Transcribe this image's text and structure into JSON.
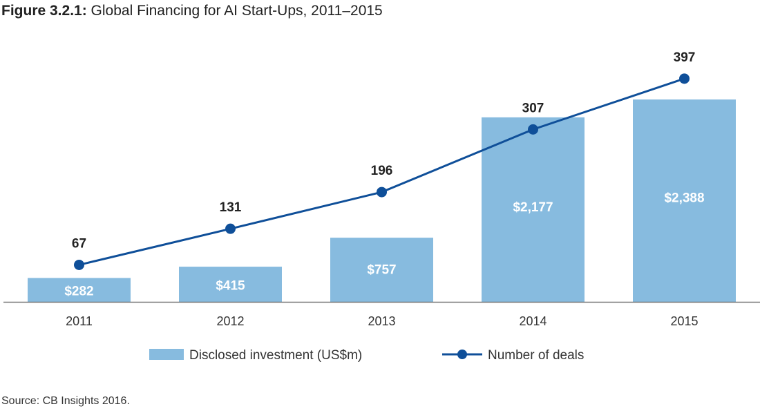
{
  "title": {
    "figure_ref": "Figure 3.2.1:",
    "text": "Global Financing for AI Start-Ups, 2011–2015"
  },
  "source": "Source: CB Insights 2016.",
  "colors": {
    "bar": "#87bbdf",
    "line": "#0f4f99",
    "axis": "#777777"
  },
  "legend": {
    "bars_label": "Disclosed investment (US$m)",
    "line_label": "Number of deals",
    "placement": "bottom-center"
  },
  "chart_data": {
    "type": "bar",
    "categories": [
      "2011",
      "2012",
      "2013",
      "2014",
      "2015"
    ],
    "series": [
      {
        "name": "Disclosed investment (US$m)",
        "type": "bar",
        "values": [
          282,
          415,
          757,
          2177,
          2388
        ],
        "labels": [
          "$282",
          "$415",
          "$757",
          "$2,177",
          "$2,388"
        ]
      },
      {
        "name": "Number of deals",
        "type": "line",
        "values": [
          67,
          131,
          196,
          307,
          397
        ],
        "labels": [
          "67",
          "131",
          "196",
          "307",
          "397"
        ]
      }
    ],
    "grid": false
  }
}
